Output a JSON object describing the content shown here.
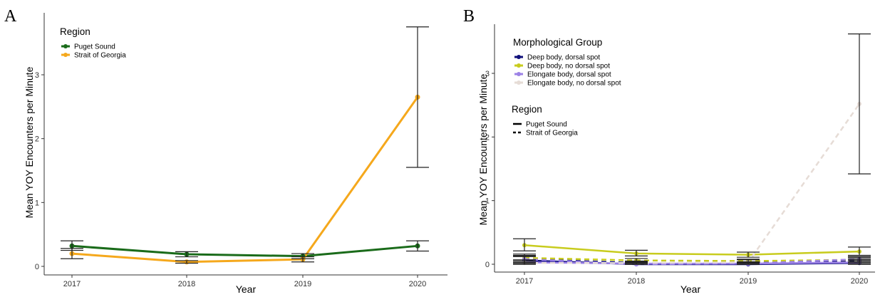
{
  "chart_data": [
    {
      "type": "line",
      "panel": "A",
      "xlabel": "Year",
      "ylabel": "Mean YOY Encounters per Minute",
      "categories": [
        "2017",
        "2018",
        "2019",
        "2020"
      ],
      "ylim": [
        -0.1,
        4.0
      ],
      "yticks": [
        0,
        1,
        2,
        3
      ],
      "grid": false,
      "legend": {
        "title": "Region",
        "placement": "top-left",
        "items": [
          {
            "label": "Puget Sound",
            "color": "#1a6b1a"
          },
          {
            "label": "Strait of Georgia",
            "color": "#f5a81c"
          }
        ]
      },
      "series": [
        {
          "name": "Puget Sound",
          "color": "#1a6b1a",
          "dash": "solid",
          "values": [
            0.32,
            0.19,
            0.16,
            0.32
          ],
          "lower": [
            0.25,
            0.15,
            0.12,
            0.24
          ],
          "upper": [
            0.4,
            0.23,
            0.2,
            0.4
          ]
        },
        {
          "name": "Strait of Georgia",
          "color": "#f5a81c",
          "dash": "solid",
          "values": [
            0.2,
            0.07,
            0.11,
            2.65
          ],
          "lower": [
            0.12,
            0.05,
            0.07,
            1.55
          ],
          "upper": [
            0.28,
            0.09,
            0.15,
            3.75
          ]
        }
      ]
    },
    {
      "type": "line",
      "panel": "B",
      "xlabel": "Year",
      "ylabel": "Mean YOY Encounters per Minute",
      "categories": [
        "2017",
        "2018",
        "2019",
        "2020"
      ],
      "ylim": [
        -0.1,
        3.7
      ],
      "yticks": [
        0,
        1,
        2,
        3
      ],
      "grid": false,
      "legend": {
        "title": "Morphological Group",
        "placement": "top-left",
        "items": [
          {
            "label": "Deep body, dorsal spot",
            "color": "#0f0f7a"
          },
          {
            "label": "Deep body, no dorsal spot",
            "color": "#c8cc1e"
          },
          {
            "label": "Elongate body, dorsal spot",
            "color": "#9c82e6"
          },
          {
            "label": "Elongate body, no dorsal spot",
            "color": "#e6dcd6"
          }
        ],
        "region_title": "Region",
        "region_items": [
          {
            "label": "Puget Sound",
            "dash": "solid"
          },
          {
            "label": "Strait of Georgia",
            "dash": "dashed"
          }
        ]
      },
      "series": [
        {
          "group": "Deep body, dorsal spot",
          "region": "Puget Sound",
          "color": "#0f0f7a",
          "dash": "solid",
          "values": [
            0.06,
            0.0,
            0.0,
            0.02
          ],
          "lower": [
            0.0,
            0.0,
            0.0,
            0.0
          ],
          "upper": [
            0.12,
            0.02,
            0.02,
            0.06
          ]
        },
        {
          "group": "Deep body, dorsal spot",
          "region": "Strait of Georgia",
          "color": "#0f0f7a",
          "dash": "dashed",
          "values": [
            0.08,
            0.02,
            0.02,
            0.05
          ],
          "lower": [
            0.02,
            0.0,
            0.0,
            0.01
          ],
          "upper": [
            0.14,
            0.04,
            0.04,
            0.09
          ]
        },
        {
          "group": "Deep body, no dorsal spot",
          "region": "Puget Sound",
          "color": "#c8cc1e",
          "dash": "solid",
          "values": [
            0.3,
            0.17,
            0.15,
            0.2
          ],
          "lower": [
            0.21,
            0.13,
            0.11,
            0.14
          ],
          "upper": [
            0.4,
            0.22,
            0.19,
            0.27
          ]
        },
        {
          "group": "Deep body, no dorsal spot",
          "region": "Strait of Georgia",
          "color": "#c8cc1e",
          "dash": "dashed",
          "values": [
            0.1,
            0.06,
            0.05,
            0.07
          ],
          "lower": [
            0.05,
            0.03,
            0.02,
            0.03
          ],
          "upper": [
            0.16,
            0.09,
            0.08,
            0.11
          ]
        },
        {
          "group": "Elongate body, dorsal spot",
          "region": "Puget Sound",
          "color": "#9c82e6",
          "dash": "solid",
          "values": [
            0.03,
            0.01,
            0.01,
            0.03
          ],
          "lower": [
            0.0,
            0.0,
            0.0,
            0.0
          ],
          "upper": [
            0.07,
            0.03,
            0.03,
            0.07
          ]
        },
        {
          "group": "Elongate body, dorsal spot",
          "region": "Strait of Georgia",
          "color": "#9c82e6",
          "dash": "dashed",
          "values": [
            0.08,
            0.0,
            0.01,
            0.08
          ],
          "lower": [
            0.03,
            0.0,
            0.0,
            0.04
          ],
          "upper": [
            0.13,
            0.02,
            0.03,
            0.12
          ]
        },
        {
          "group": "Elongate body, no dorsal spot",
          "region": "Strait of Georgia",
          "color": "#e6dcd6",
          "dash": "dashed",
          "values": [
            0.02,
            0.02,
            0.03,
            2.52
          ],
          "lower": [
            0.0,
            0.0,
            0.0,
            1.42
          ],
          "upper": [
            0.05,
            0.05,
            0.07,
            3.62
          ]
        }
      ]
    }
  ]
}
